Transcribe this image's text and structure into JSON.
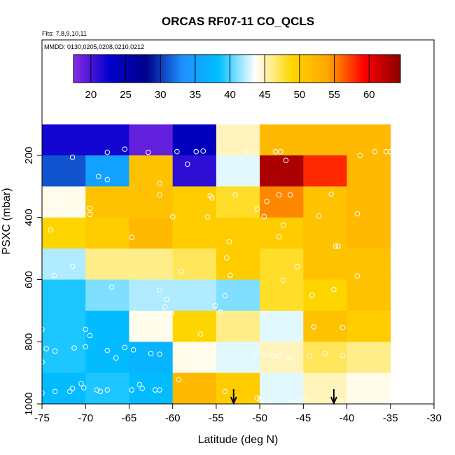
{
  "chart_data": {
    "type": "heatmap",
    "title": "ORCAS RF07-11 CO_QCLS",
    "flights_note": "Flts: 7,8,9,10,11",
    "dates_note": "MMDD: 0130,0205,0208,0210,0212",
    "xlabel": "Latitude (deg N)",
    "ylabel": "PSXC (mbar)",
    "xlim": [
      -75,
      -30
    ],
    "ylim": [
      1000,
      100
    ],
    "x_ticks": [
      -75,
      -70,
      -65,
      -60,
      -55,
      -50,
      -45,
      -40,
      -35,
      -30
    ],
    "y_ticks": [
      200,
      400,
      600,
      800,
      1000
    ],
    "colorbar": {
      "range": [
        17.5,
        64.5
      ],
      "ticks": [
        20,
        25,
        30,
        35,
        40,
        45,
        50,
        55,
        60
      ],
      "stops": [
        "#8a2be2",
        "#0000cd",
        "#00008b",
        "#1e90ff",
        "#00bfff",
        "#ffffff",
        "#ffd700",
        "#ffa500",
        "#ff0000",
        "#8b0000"
      ]
    },
    "x_bin_edges": [
      -75,
      -70,
      -65,
      -60,
      -55,
      -50,
      -45,
      -40,
      -35
    ],
    "y_bin_edges": [
      100,
      200,
      300,
      400,
      500,
      600,
      700,
      800,
      900,
      1000
    ],
    "cells": [
      [
        22,
        22,
        19,
        24,
        45,
        52,
        52,
        52
      ],
      [
        31,
        35,
        51,
        21,
        43,
        63,
        58,
        52
      ],
      [
        44,
        51,
        51,
        50,
        48,
        55,
        51,
        52
      ],
      [
        49,
        50,
        52,
        50,
        50,
        50,
        51,
        52
      ],
      [
        42,
        46,
        46,
        47,
        50,
        48,
        51,
        51
      ],
      [
        39,
        41,
        42,
        42,
        41,
        48,
        49,
        51
      ],
      [
        39,
        38,
        44,
        49,
        46,
        43,
        51,
        50
      ],
      [
        39,
        38,
        37,
        44,
        43,
        45,
        47,
        46
      ],
      [
        38,
        39,
        38,
        52,
        50,
        43,
        45,
        44
      ]
    ],
    "points": [
      [
        -71.5,
        206
      ],
      [
        -67.5,
        190
      ],
      [
        -65.5,
        180
      ],
      [
        -62.8,
        190
      ],
      [
        -59.5,
        188
      ],
      [
        -58.3,
        228
      ],
      [
        -57.3,
        188
      ],
      [
        -56.5,
        186
      ],
      [
        -51.5,
        187
      ],
      [
        -48.2,
        188
      ],
      [
        -47.6,
        188
      ],
      [
        -47,
        216
      ],
      [
        -38.5,
        200
      ],
      [
        -36.8,
        188
      ],
      [
        -35.5,
        188
      ],
      [
        -35,
        188
      ],
      [
        -72.8,
        350
      ],
      [
        -72,
        382
      ],
      [
        -69.5,
        390
      ],
      [
        -68.5,
        268
      ],
      [
        -67.5,
        278
      ],
      [
        -61.5,
        290
      ],
      [
        -61.5,
        327
      ],
      [
        -60,
        398
      ],
      [
        -55.5,
        337
      ],
      [
        -55.7,
        330
      ],
      [
        -52.8,
        327
      ],
      [
        -50.3,
        372
      ],
      [
        -49.5,
        397
      ],
      [
        -49.2,
        348
      ],
      [
        -47.8,
        327
      ],
      [
        -46.5,
        327
      ],
      [
        -43.2,
        395
      ],
      [
        -41.8,
        325
      ],
      [
        -38.8,
        388
      ],
      [
        -74,
        440
      ],
      [
        -69.5,
        370
      ],
      [
        -64.7,
        464
      ],
      [
        -56,
        398
      ],
      [
        -53.5,
        478
      ],
      [
        -47.8,
        462
      ],
      [
        -47.3,
        425
      ],
      [
        -41.3,
        492
      ],
      [
        -41,
        492
      ],
      [
        -71.5,
        557
      ],
      [
        -73.6,
        587
      ],
      [
        -59,
        574
      ],
      [
        -53.8,
        530
      ],
      [
        -53.4,
        586
      ],
      [
        -47.3,
        602
      ],
      [
        -45.7,
        558
      ],
      [
        -38.8,
        588
      ],
      [
        -67,
        624
      ],
      [
        -61.5,
        634
      ],
      [
        -60.7,
        663
      ],
      [
        -60.9,
        688
      ],
      [
        -60.1,
        708
      ],
      [
        -55.1,
        684
      ],
      [
        -54.5,
        705
      ],
      [
        -54,
        652
      ],
      [
        -49.5,
        708
      ],
      [
        -44,
        650
      ],
      [
        -41.5,
        632
      ],
      [
        -75,
        760
      ],
      [
        -70,
        760
      ],
      [
        -69.5,
        780
      ],
      [
        -56.8,
        775
      ],
      [
        -43.8,
        752
      ],
      [
        -40.5,
        754
      ],
      [
        -71.3,
        820
      ],
      [
        -70,
        816
      ],
      [
        -67.5,
        828
      ],
      [
        -66.5,
        852
      ],
      [
        -65.5,
        818
      ],
      [
        -64.5,
        826
      ],
      [
        -62.5,
        838
      ],
      [
        -61.5,
        840
      ],
      [
        -56.5,
        835
      ],
      [
        -50.5,
        835
      ],
      [
        -49.5,
        842
      ],
      [
        -48.5,
        844
      ],
      [
        -47.8,
        844
      ],
      [
        -46.7,
        850
      ],
      [
        -44.3,
        846
      ],
      [
        -42.5,
        838
      ],
      [
        -40.5,
        844
      ],
      [
        -75,
        865
      ],
      [
        -74.5,
        822
      ],
      [
        -73.5,
        830
      ],
      [
        -71.5,
        950
      ],
      [
        -70.2,
        948
      ],
      [
        -70.5,
        935
      ],
      [
        -68.7,
        955
      ],
      [
        -67.5,
        955
      ],
      [
        -63.5,
        950
      ],
      [
        -62,
        955
      ],
      [
        -61.5,
        955
      ],
      [
        -59.3,
        922
      ],
      [
        -54,
        960
      ],
      [
        -50.3,
        982
      ],
      [
        -50,
        985
      ],
      [
        -49.5,
        990
      ],
      [
        -46.5,
        994
      ],
      [
        -45.5,
        990
      ],
      [
        -44.7,
        980
      ],
      [
        -40.8,
        990
      ],
      [
        -71.8,
        960
      ],
      [
        -73.5,
        960
      ],
      [
        -75,
        965
      ],
      [
        -64.7,
        955
      ],
      [
        -63.8,
        938
      ],
      [
        -68.3,
        960
      ]
    ],
    "arrows_x": [
      -53,
      -41.5
    ]
  }
}
